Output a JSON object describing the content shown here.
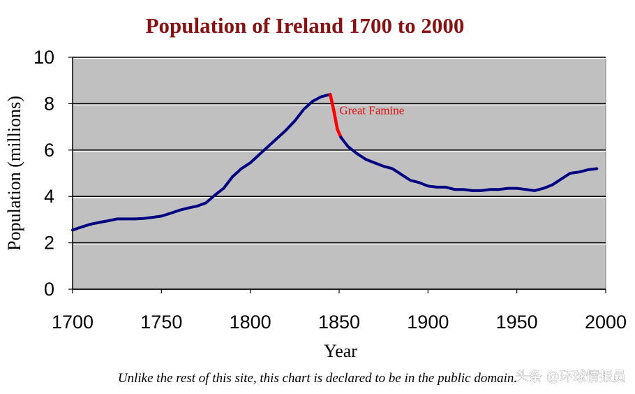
{
  "chart_data": {
    "type": "line",
    "title": "Population of Ireland 1700 to 2000",
    "xlabel": "Year",
    "ylabel": "Population (millions)",
    "xlim": [
      1700,
      2000
    ],
    "ylim": [
      0,
      10
    ],
    "x_ticks": [
      "1700",
      "1750",
      "1800",
      "1850",
      "1900",
      "1950",
      "2000"
    ],
    "y_ticks": [
      "0",
      "2",
      "4",
      "6",
      "8",
      "10"
    ],
    "grid": "horizontal",
    "background_color": "#c0c0c0",
    "line_color": "#000080",
    "highlight_color": "#ff0000",
    "series": [
      {
        "name": "",
        "x": [
          1700,
          1705,
          1710,
          1715,
          1720,
          1725,
          1730,
          1735,
          1740,
          1745,
          1750,
          1755,
          1760,
          1765,
          1770,
          1775,
          1780,
          1785,
          1790,
          1795,
          1800,
          1805,
          1810,
          1815,
          1820,
          1825,
          1830,
          1835,
          1840,
          1845
        ],
        "y": [
          2.55,
          2.68,
          2.8,
          2.88,
          2.95,
          3.03,
          3.03,
          3.03,
          3.05,
          3.1,
          3.15,
          3.27,
          3.4,
          3.5,
          3.58,
          3.72,
          4.05,
          4.35,
          4.85,
          5.2,
          5.45,
          5.8,
          6.15,
          6.5,
          6.85,
          7.25,
          7.75,
          8.1,
          8.3,
          8.4
        ]
      },
      {
        "name": "Great Famine",
        "x": [
          1845,
          1847,
          1849,
          1851
        ],
        "y": [
          8.4,
          7.7,
          6.9,
          6.55
        ]
      },
      {
        "name": "",
        "x": [
          1851,
          1855,
          1860,
          1865,
          1870,
          1875,
          1880,
          1885,
          1890,
          1895,
          1900,
          1905,
          1910,
          1915,
          1920,
          1925,
          1930,
          1935,
          1940,
          1945,
          1950,
          1955,
          1960,
          1965,
          1970,
          1975,
          1980,
          1985,
          1990,
          1995
        ],
        "y": [
          6.55,
          6.15,
          5.85,
          5.6,
          5.45,
          5.3,
          5.2,
          4.95,
          4.7,
          4.6,
          4.45,
          4.4,
          4.4,
          4.3,
          4.3,
          4.25,
          4.25,
          4.3,
          4.3,
          4.35,
          4.35,
          4.3,
          4.25,
          4.35,
          4.5,
          4.75,
          5.0,
          5.05,
          5.15,
          5.2
        ]
      }
    ],
    "annotations": [
      {
        "text": "Great Famine",
        "x": 1847,
        "y": 7.6
      }
    ]
  },
  "footer_note": "Unlike the rest of this site, this chart is declared to be in the public domain.",
  "watermark": "头条 @环球情报员"
}
